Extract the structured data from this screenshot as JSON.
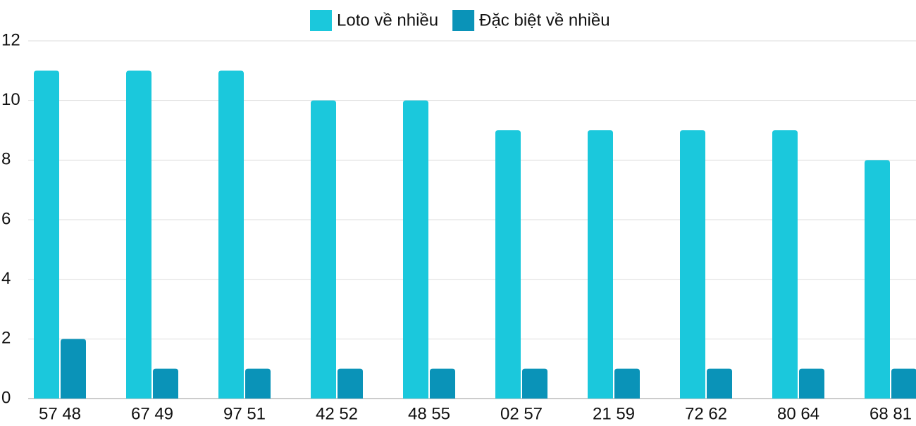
{
  "chart_data": {
    "type": "bar",
    "categories": [
      "57 48",
      "67 49",
      "97 51",
      "42 52",
      "48 55",
      "02 57",
      "21 59",
      "72 62",
      "80 64",
      "68 81"
    ],
    "series": [
      {
        "name": "Loto về nhiều",
        "color": "#1bc8dc",
        "values": [
          11,
          11,
          11,
          10,
          10,
          9,
          9,
          9,
          9,
          8
        ]
      },
      {
        "name": "Đặc biệt về nhiều",
        "color": "#0a93b8",
        "values": [
          2,
          1,
          1,
          1,
          1,
          1,
          1,
          1,
          1,
          1
        ]
      }
    ],
    "ylim": [
      0,
      12
    ],
    "yticks": [
      0,
      2,
      4,
      6,
      8,
      10,
      12
    ],
    "grid": true,
    "legend": "top"
  }
}
